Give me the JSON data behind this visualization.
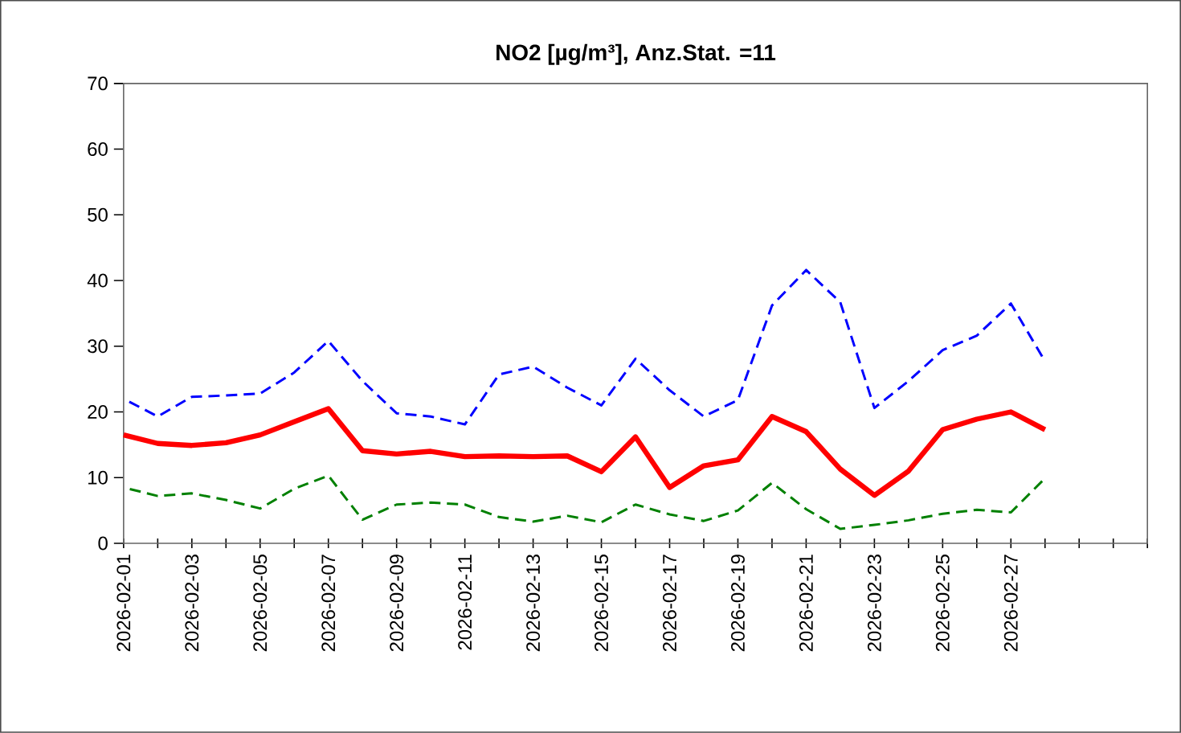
{
  "chart_data": {
    "type": "line",
    "title": "NO2 [µg/m³], Anz.Stat. =11",
    "x": [
      "2026-02-01",
      "2026-02-02",
      "2026-02-03",
      "2026-02-04",
      "2026-02-05",
      "2026-02-06",
      "2026-02-07",
      "2026-02-08",
      "2026-02-09",
      "2026-02-10",
      "2026-02-11",
      "2026-02-12",
      "2026-02-13",
      "2026-02-14",
      "2026-02-15",
      "2026-02-16",
      "2026-02-17",
      "2026-02-18",
      "2026-02-19",
      "2026-02-20",
      "2026-02-21",
      "2026-02-22",
      "2026-02-23",
      "2026-02-24",
      "2026-02-25",
      "2026-02-26",
      "2026-02-27",
      "2026-02-28"
    ],
    "series": [
      {
        "color": "#0000ff",
        "line_style": "dashed",
        "values": [
          22.0,
          19.3,
          22.3,
          22.5,
          22.8,
          26.0,
          30.8,
          24.7,
          19.8,
          19.3,
          18.1,
          25.7,
          26.9,
          23.7,
          21.0,
          28.1,
          23.3,
          19.3,
          21.8,
          36.2,
          41.6,
          36.7,
          20.6,
          24.7,
          29.4,
          31.6,
          36.5,
          27.7
        ]
      },
      {
        "color": "#ff0000",
        "line_style": "solid",
        "values": [
          16.5,
          15.2,
          14.9,
          15.3,
          16.5,
          18.5,
          20.5,
          14.1,
          13.6,
          14.0,
          13.2,
          13.3,
          13.2,
          13.3,
          10.9,
          16.2,
          8.5,
          11.8,
          12.7,
          19.3,
          17.0,
          11.3,
          7.3,
          11.0,
          17.3,
          18.9,
          20.0,
          17.3
        ]
      },
      {
        "color": "#008000",
        "line_style": "dashed",
        "values": [
          8.5,
          7.2,
          7.6,
          6.6,
          5.3,
          8.3,
          10.3,
          3.6,
          5.9,
          6.2,
          5.9,
          4.0,
          3.3,
          4.2,
          3.2,
          5.9,
          4.4,
          3.4,
          5.0,
          9.2,
          5.2,
          2.2,
          2.8,
          3.5,
          4.5,
          5.1,
          4.7,
          9.9
        ]
      }
    ],
    "xlim": [
      "2026-02-01",
      "2026-03-03"
    ],
    "xticks": [
      {
        "value": "2026-02-01",
        "label": "2026-02-01"
      },
      {
        "value": "2026-02-02",
        "label": null
      },
      {
        "value": "2026-02-03",
        "label": "2026-02-03"
      },
      {
        "value": "2026-02-04",
        "label": null
      },
      {
        "value": "2026-02-05",
        "label": "2026-02-05"
      },
      {
        "value": "2026-02-06",
        "label": null
      },
      {
        "value": "2026-02-07",
        "label": "2026-02-07"
      },
      {
        "value": "2026-02-08",
        "label": null
      },
      {
        "value": "2026-02-09",
        "label": "2026-02-09"
      },
      {
        "value": "2026-02-10",
        "label": null
      },
      {
        "value": "2026-02-11",
        "label": "2026-02-11"
      },
      {
        "value": "2026-02-12",
        "label": null
      },
      {
        "value": "2026-02-13",
        "label": "2026-02-13"
      },
      {
        "value": "2026-02-14",
        "label": null
      },
      {
        "value": "2026-02-15",
        "label": "2026-02-15"
      },
      {
        "value": "2026-02-16",
        "label": null
      },
      {
        "value": "2026-02-17",
        "label": "2026-02-17"
      },
      {
        "value": "2026-02-18",
        "label": null
      },
      {
        "value": "2026-02-19",
        "label": "2026-02-19"
      },
      {
        "value": "2026-02-20",
        "label": null
      },
      {
        "value": "2026-02-21",
        "label": "2026-02-21"
      },
      {
        "value": "2026-02-22",
        "label": null
      },
      {
        "value": "2026-02-23",
        "label": "2026-02-23"
      },
      {
        "value": "2026-02-24",
        "label": null
      },
      {
        "value": "2026-02-25",
        "label": "2026-02-25"
      },
      {
        "value": "2026-02-26",
        "label": null
      },
      {
        "value": "2026-02-27",
        "label": "2026-02-27"
      },
      {
        "value": "2026-02-28",
        "label": null
      },
      {
        "value": "2026-03-01",
        "label": null
      },
      {
        "value": "2026-03-02",
        "label": null
      },
      {
        "value": "2026-03-03",
        "label": null
      }
    ],
    "ylim": [
      0,
      70
    ],
    "yticks": [
      0,
      10,
      20,
      30,
      40,
      50,
      60,
      70
    ],
    "grid": false,
    "legend": false,
    "marker": "none"
  }
}
